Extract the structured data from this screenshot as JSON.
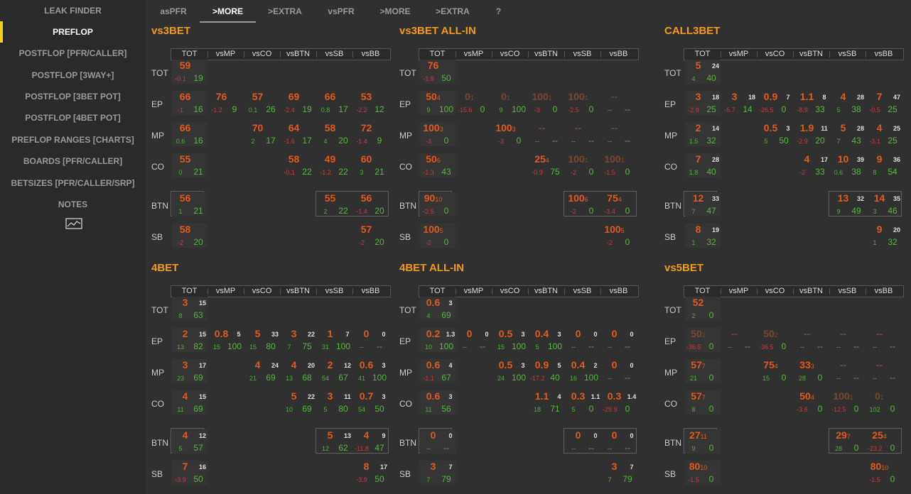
{
  "sidebar": {
    "header": "LEAK FINDER",
    "items": [
      "PREFLOP",
      "POSTFLOP [PFR/CALLER]",
      "POSTFLOP [3WAY+]",
      "POSTFLOP [3BET POT]",
      "POSTFLOP [4BET POT]",
      "PREFLOP RANGES [CHARTS]",
      "BOARDS [PFR/CALLER]",
      "BETSIZES [PFR/CALLER/SRP]",
      "NOTES"
    ],
    "active_index": 0,
    "chart_icon": "chart-icon"
  },
  "tabs": [
    "asPFR",
    ">MORE",
    ">EXTRA",
    "vsPFR",
    ">MORE",
    ">EXTRA",
    "?"
  ],
  "active_tab": 1,
  "columns": [
    "TOT",
    "vsMP",
    "vsCO",
    "vsBTN",
    "vsSB",
    "vsBB"
  ],
  "rows": [
    "TOT",
    "EP",
    "MP",
    "CO",
    "BTN",
    "SB"
  ],
  "colors": {
    "accent": "#f2d21a",
    "title": "#f29a1c",
    "value": "#e35a1c",
    "positive": "#4fae3a",
    "negative": "#d3353a"
  },
  "panels": [
    {
      "title": "vs3BET",
      "cells": [
        [
          [
            "59",
            "",
            "-0.1",
            "19"
          ]
        ],
        [
          [
            "66",
            "",
            "-1",
            "16"
          ],
          [
            "76",
            "",
            "-1.2",
            "9"
          ],
          [
            "57",
            "",
            "0.1",
            "26"
          ],
          [
            "69",
            "",
            "-2.4",
            "19"
          ],
          [
            "66",
            "",
            "0.8",
            "17"
          ],
          [
            "53",
            "",
            "-2.2",
            "12"
          ]
        ],
        [
          [
            "66",
            "",
            "0.6",
            "16"
          ],
          null,
          [
            "70",
            "",
            "2",
            "17"
          ],
          [
            "64",
            "",
            "-1.6",
            "17"
          ],
          [
            "58",
            "",
            "4",
            "20"
          ],
          [
            "72",
            "",
            "-1.4",
            "9"
          ]
        ],
        [
          [
            "55",
            "",
            "0",
            "21"
          ],
          null,
          null,
          [
            "58",
            "",
            "-0.1",
            "22"
          ],
          [
            "49",
            "",
            "-1.2",
            "22"
          ],
          [
            "60",
            "",
            "3",
            "21"
          ]
        ],
        [
          [
            "56",
            "",
            "1",
            "21"
          ],
          null,
          null,
          null,
          [
            "55",
            "",
            "2",
            "22"
          ],
          [
            "56",
            "",
            "-1.4",
            "20"
          ]
        ],
        [
          [
            "58",
            "",
            "-2",
            "20"
          ],
          null,
          null,
          null,
          null,
          [
            "57",
            "",
            "-2",
            "20"
          ]
        ]
      ]
    },
    {
      "title": "vs3BET ALL-IN",
      "cells": [
        [
          [
            "76",
            "",
            "-1.8",
            "50"
          ]
        ],
        [
          [
            "50",
            "4",
            "9",
            "100"
          ],
          [
            "0",
            "1",
            "-15.6",
            "0"
          ],
          [
            "0",
            "1",
            "9",
            "100"
          ],
          [
            "100",
            "1",
            "-3",
            "0"
          ],
          [
            "100",
            "1",
            "-2.5",
            "0"
          ],
          [
            "--",
            "",
            "--",
            "--"
          ]
        ],
        [
          [
            "100",
            "3",
            "-3",
            "0"
          ],
          null,
          [
            "100",
            "3",
            "-3",
            "0"
          ],
          [
            "--",
            "",
            "--",
            "--"
          ],
          [
            "--",
            "",
            "--",
            "--"
          ],
          [
            "--",
            "",
            "--",
            "--"
          ]
        ],
        [
          [
            "50",
            "6",
            "-1.3",
            "43"
          ],
          null,
          null,
          [
            "25",
            "4",
            "-0.9",
            "75"
          ],
          [
            "100",
            "1",
            "-2",
            "0"
          ],
          [
            "100",
            "1",
            "-1.5",
            "0"
          ]
        ],
        [
          [
            "90",
            "10",
            "-2.5",
            "0"
          ],
          null,
          null,
          null,
          [
            "100",
            "6",
            "-2",
            "0"
          ],
          [
            "75",
            "4",
            "-3.4",
            "0"
          ]
        ],
        [
          [
            "100",
            "5",
            "-2",
            "0"
          ],
          null,
          null,
          null,
          null,
          [
            "100",
            "5",
            "-2",
            "0"
          ]
        ]
      ]
    },
    {
      "title": "CALL3BET",
      "cells": [
        [
          [
            "5",
            "24",
            "4",
            "40"
          ]
        ],
        [
          [
            "3",
            "18",
            "-2.9",
            "25"
          ],
          [
            "3",
            "18",
            "-5.7",
            "14"
          ],
          [
            "0.9",
            "7",
            "-26.5",
            "0"
          ],
          [
            "1.1",
            "8",
            "-8.9",
            "33"
          ],
          [
            "4",
            "28",
            "5",
            "38"
          ],
          [
            "7",
            "47",
            "-0.5",
            "25"
          ]
        ],
        [
          [
            "2",
            "14",
            "1.5",
            "32"
          ],
          null,
          [
            "0.5",
            "3",
            "5",
            "50"
          ],
          [
            "1.9",
            "11",
            "-2.9",
            "20"
          ],
          [
            "5",
            "28",
            "7",
            "43"
          ],
          [
            "4",
            "25",
            "-3.1",
            "25"
          ]
        ],
        [
          [
            "7",
            "28",
            "1.8",
            "40"
          ],
          null,
          null,
          [
            "4",
            "17",
            "-2",
            "33"
          ],
          [
            "10",
            "39",
            "0.6",
            "38"
          ],
          [
            "9",
            "36",
            "8",
            "54"
          ]
        ],
        [
          [
            "12",
            "33",
            "7",
            "47"
          ],
          null,
          null,
          null,
          [
            "13",
            "32",
            "9",
            "49"
          ],
          [
            "14",
            "35",
            "3",
            "46"
          ]
        ],
        [
          [
            "8",
            "19",
            "1",
            "32"
          ],
          null,
          null,
          null,
          null,
          [
            "9",
            "20",
            "1",
            "32"
          ]
        ]
      ]
    },
    {
      "title": "4BET",
      "cells": [
        [
          [
            "3",
            "15",
            "8",
            "63"
          ]
        ],
        [
          [
            "2",
            "15",
            "13",
            "82"
          ],
          [
            "0.8",
            "5",
            "15",
            "100"
          ],
          [
            "5",
            "33",
            "15",
            "80"
          ],
          [
            "3",
            "22",
            "7",
            "75"
          ],
          [
            "1",
            "7",
            "31",
            "100"
          ],
          [
            "0",
            "0",
            "--",
            "--"
          ]
        ],
        [
          [
            "3",
            "17",
            "23",
            "69"
          ],
          null,
          [
            "4",
            "24",
            "21",
            "69"
          ],
          [
            "4",
            "20",
            "13",
            "68"
          ],
          [
            "2",
            "12",
            "54",
            "67"
          ],
          [
            "0.6",
            "3",
            "41",
            "100"
          ]
        ],
        [
          [
            "4",
            "15",
            "11",
            "69"
          ],
          null,
          null,
          [
            "5",
            "22",
            "10",
            "69"
          ],
          [
            "3",
            "11",
            "5",
            "80"
          ],
          [
            "0.7",
            "3",
            "54",
            "50"
          ]
        ],
        [
          [
            "4",
            "12",
            "5",
            "57"
          ],
          null,
          null,
          null,
          [
            "5",
            "13",
            "12",
            "62"
          ],
          [
            "4",
            "9",
            "-11.8",
            "47"
          ]
        ],
        [
          [
            "7",
            "16",
            "-3.9",
            "50"
          ],
          null,
          null,
          null,
          null,
          [
            "8",
            "17",
            "-3.9",
            "50"
          ]
        ]
      ]
    },
    {
      "title": "4BET ALL-IN",
      "cells": [
        [
          [
            "0.6",
            "3",
            "4",
            "69"
          ]
        ],
        [
          [
            "0.2",
            "1.3",
            "10",
            "100"
          ],
          [
            "0",
            "0",
            "--",
            "--"
          ],
          [
            "0.5",
            "3",
            "15",
            "100"
          ],
          [
            "0.4",
            "3",
            "5",
            "100"
          ],
          [
            "0",
            "0",
            "--",
            "--"
          ],
          [
            "0",
            "0",
            "--",
            "--"
          ]
        ],
        [
          [
            "0.6",
            "4",
            "-1.1",
            "67"
          ],
          null,
          [
            "0.5",
            "3",
            "24",
            "100"
          ],
          [
            "0.9",
            "5",
            "-17.2",
            "40"
          ],
          [
            "0.4",
            "2",
            "16",
            "100"
          ],
          [
            "0",
            "0",
            "--",
            "--"
          ]
        ],
        [
          [
            "0.6",
            "3",
            "11",
            "56"
          ],
          null,
          null,
          [
            "1.1",
            "4",
            "18",
            "71"
          ],
          [
            "0.3",
            "1.1",
            "5",
            "0"
          ],
          [
            "0.3",
            "1.4",
            "-29.9",
            "0"
          ]
        ],
        [
          [
            "0",
            "0",
            "--",
            "--"
          ],
          null,
          null,
          null,
          [
            "0",
            "0",
            "--",
            "--"
          ],
          [
            "0",
            "0",
            "--",
            "--"
          ]
        ],
        [
          [
            "3",
            "7",
            "7",
            "79"
          ],
          null,
          null,
          null,
          null,
          [
            "3",
            "7",
            "7",
            "79"
          ]
        ]
      ]
    },
    {
      "title": "vs5BET",
      "cells": [
        [
          [
            "52",
            "",
            "2",
            "0"
          ]
        ],
        [
          [
            "50",
            "2",
            "-36.5",
            "0"
          ],
          [
            "--",
            "",
            "--",
            "--"
          ],
          [
            "50",
            "2",
            "-36.5",
            "0"
          ],
          [
            "--",
            "",
            "--",
            "--"
          ],
          [
            "--",
            "",
            "--",
            "--"
          ],
          [
            "--",
            "",
            "--",
            "--"
          ]
        ],
        [
          [
            "57",
            "7",
            "21",
            "0"
          ],
          null,
          [
            "75",
            "4",
            "15",
            "0"
          ],
          [
            "33",
            "3",
            "28",
            "0"
          ],
          [
            "--",
            "",
            "--",
            "--"
          ],
          [
            "--",
            "",
            "--",
            "--"
          ]
        ],
        [
          [
            "57",
            "7",
            "8",
            "0"
          ],
          null,
          null,
          [
            "50",
            "4",
            "-3.6",
            "0"
          ],
          [
            "100",
            "1",
            "-12.5",
            "0"
          ],
          [
            "0",
            "1",
            "102",
            "0"
          ]
        ],
        [
          [
            "27",
            "11",
            "9",
            "0"
          ],
          null,
          null,
          null,
          [
            "29",
            "7",
            "28",
            "0"
          ],
          [
            "25",
            "4",
            "-23.2",
            "0"
          ]
        ],
        [
          [
            "80",
            "10",
            "-1.5",
            "0"
          ],
          null,
          null,
          null,
          null,
          [
            "80",
            "10",
            "-1.5",
            "0"
          ]
        ]
      ]
    }
  ]
}
